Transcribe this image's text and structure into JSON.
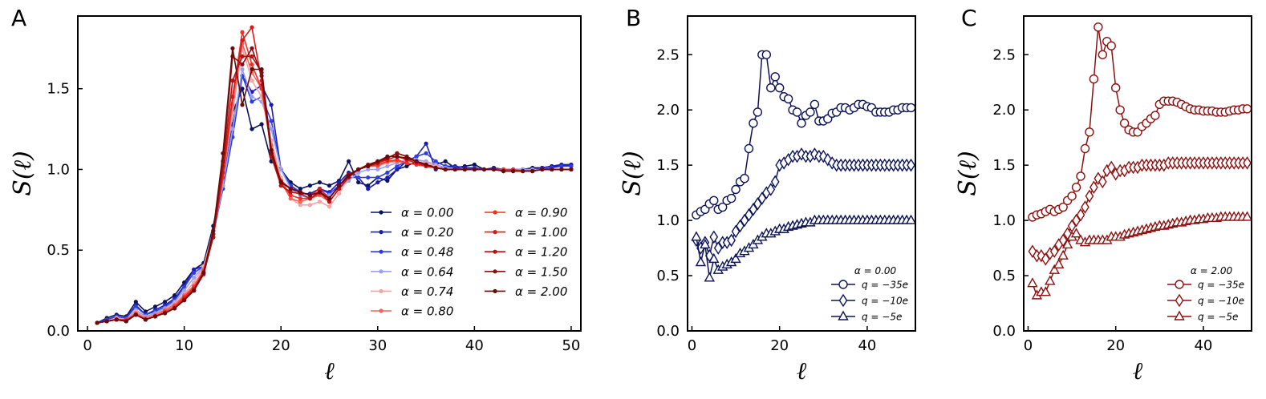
{
  "panel_letters": [
    "A",
    "B",
    "C"
  ],
  "chart_data": [
    {
      "type": "line",
      "panel": "A",
      "xlabel": "ℓ",
      "ylabel": "S(ℓ)",
      "xlim": [
        -1,
        51
      ],
      "ylim": [
        0,
        1.95
      ],
      "xticks": [
        0,
        10,
        20,
        30,
        40,
        50
      ],
      "xtick_labels": [
        "0",
        "10",
        "20",
        "30",
        "40",
        "50"
      ],
      "yticks": [
        0,
        0.5,
        1.0,
        1.5
      ],
      "ytick_labels": [
        "0.0",
        "0.5",
        "1.0",
        "1.5"
      ],
      "legend_position": "bottom-right",
      "legend_columns": 2,
      "series": [
        {
          "name": "α = 0.00",
          "color": "#0d1358",
          "values": [
            0.05,
            0.08,
            0.1,
            0.09,
            0.18,
            0.12,
            0.15,
            0.18,
            0.22,
            0.3,
            0.38,
            0.42,
            0.65,
            0.95,
            1.35,
            1.5,
            1.25,
            1.28,
            1.05,
            1.0,
            0.92,
            0.88,
            0.9,
            0.92,
            0.9,
            0.93,
            1.05,
            0.92,
            0.9,
            0.95,
            0.93,
            1.0,
            1.02,
            1.05,
            1.02,
            1.03,
            1.05,
            1.01,
            1.02,
            1.03,
            1.0,
            1.01,
            0.99,
            1.0,
            1.0,
            1.01,
            1.01,
            1.02,
            1.02,
            1.03
          ]
        },
        {
          "name": "α = 0.20",
          "color": "#1c1cb5",
          "values": [
            0.05,
            0.07,
            0.09,
            0.08,
            0.16,
            0.1,
            0.13,
            0.16,
            0.2,
            0.28,
            0.38,
            0.4,
            0.62,
            0.9,
            1.28,
            1.58,
            1.48,
            1.52,
            1.4,
            1.0,
            0.9,
            0.85,
            0.85,
            0.88,
            0.86,
            0.92,
            0.98,
            0.95,
            0.88,
            0.92,
            0.95,
            1.0,
            1.05,
            1.08,
            1.16,
            1.0,
            1.02,
            1.02,
            1.01,
            1.01,
            1.0,
            1.01,
            1.0,
            1.0,
            1.0,
            1.0,
            1.01,
            1.02,
            1.03,
            1.03
          ]
        },
        {
          "name": "α = 0.48",
          "color": "#2f3de0",
          "values": [
            0.05,
            0.07,
            0.09,
            0.08,
            0.15,
            0.1,
            0.12,
            0.15,
            0.19,
            0.27,
            0.36,
            0.4,
            0.6,
            0.88,
            1.2,
            1.58,
            1.42,
            1.45,
            1.3,
            1.0,
            0.9,
            0.86,
            0.84,
            0.88,
            0.85,
            0.9,
            0.95,
            0.95,
            0.95,
            0.95,
            0.98,
            1.02,
            1.05,
            1.08,
            1.1,
            1.05,
            1.02,
            1.01,
            1.0,
            1.01,
            1.0,
            1.0,
            1.0,
            1.0,
            1.0,
            1.0,
            1.0,
            1.01,
            1.02,
            1.02
          ]
        },
        {
          "name": "α = 0.64",
          "color": "#9aa0f0",
          "values": [
            0.05,
            0.06,
            0.08,
            0.07,
            0.13,
            0.09,
            0.11,
            0.14,
            0.18,
            0.25,
            0.33,
            0.4,
            0.6,
            0.9,
            1.25,
            1.62,
            1.45,
            1.42,
            1.25,
            1.0,
            0.88,
            0.84,
            0.82,
            0.86,
            0.84,
            0.88,
            0.93,
            0.98,
            1.0,
            1.0,
            1.02,
            1.04,
            1.06,
            1.06,
            1.05,
            1.03,
            1.01,
            1.0,
            1.0,
            1.0,
            1.0,
            1.0,
            1.0,
            1.0,
            1.0,
            1.0,
            1.0,
            1.0,
            1.0,
            1.0
          ]
        },
        {
          "name": "α = 0.74",
          "color": "#f5a3a3",
          "values": [
            0.05,
            0.06,
            0.08,
            0.07,
            0.12,
            0.08,
            0.1,
            0.13,
            0.17,
            0.23,
            0.3,
            0.4,
            0.62,
            0.95,
            1.35,
            1.75,
            1.55,
            1.45,
            1.18,
            0.95,
            0.82,
            0.78,
            0.78,
            0.8,
            0.77,
            0.85,
            0.95,
            1.0,
            1.02,
            1.02,
            1.04,
            1.05,
            1.05,
            1.05,
            1.04,
            1.02,
            1.0,
            1.0,
            1.0,
            1.0,
            1.0,
            1.0,
            1.0,
            0.99,
            0.99,
            0.99,
            1.0,
            1.0,
            1.0,
            1.0
          ]
        },
        {
          "name": "α = 0.80",
          "color": "#f2645a",
          "values": [
            0.05,
            0.06,
            0.07,
            0.07,
            0.11,
            0.08,
            0.1,
            0.13,
            0.16,
            0.22,
            0.28,
            0.38,
            0.6,
            0.95,
            1.4,
            1.78,
            1.6,
            1.5,
            1.15,
            0.92,
            0.82,
            0.8,
            0.82,
            0.84,
            0.8,
            0.88,
            0.95,
            1.0,
            1.02,
            1.02,
            1.05,
            1.05,
            1.04,
            1.03,
            1.02,
            1.01,
            1.0,
            1.0,
            1.0,
            1.0,
            1.0,
            1.0,
            1.0,
            1.0,
            0.99,
            0.99,
            1.0,
            1.0,
            1.0,
            1.0
          ]
        },
        {
          "name": "α = 0.90",
          "color": "#f23025",
          "values": [
            0.05,
            0.06,
            0.07,
            0.07,
            0.1,
            0.07,
            0.09,
            0.12,
            0.15,
            0.21,
            0.27,
            0.37,
            0.58,
            0.95,
            1.45,
            1.85,
            1.65,
            1.5,
            1.12,
            0.92,
            0.84,
            0.82,
            0.82,
            0.85,
            0.82,
            0.9,
            0.96,
            1.0,
            1.02,
            1.03,
            1.05,
            1.06,
            1.04,
            1.03,
            1.02,
            1.01,
            1.0,
            1.0,
            1.0,
            1.0,
            1.0,
            1.0,
            1.0,
            1.0,
            0.99,
            0.99,
            1.0,
            1.0,
            1.0,
            1.0
          ]
        },
        {
          "name": "α = 1.00",
          "color": "#d81a1a",
          "values": [
            0.05,
            0.06,
            0.07,
            0.06,
            0.1,
            0.07,
            0.09,
            0.11,
            0.14,
            0.2,
            0.26,
            0.36,
            0.58,
            0.98,
            1.45,
            1.8,
            1.88,
            1.55,
            1.1,
            0.93,
            0.88,
            0.86,
            0.84,
            0.88,
            0.82,
            0.9,
            0.96,
            1.0,
            1.02,
            1.04,
            1.06,
            1.08,
            1.06,
            1.04,
            1.02,
            1.01,
            1.0,
            1.0,
            1.0,
            1.0,
            1.0,
            1.0,
            0.99,
            0.99,
            0.99,
            0.99,
            1.0,
            1.0,
            1.0,
            1.0
          ]
        },
        {
          "name": "α = 1.20",
          "color": "#b51313",
          "values": [
            0.05,
            0.06,
            0.07,
            0.06,
            0.1,
            0.07,
            0.09,
            0.11,
            0.14,
            0.19,
            0.25,
            0.35,
            0.58,
            1.02,
            1.55,
            1.7,
            1.7,
            1.6,
            1.08,
            0.9,
            0.86,
            0.85,
            0.82,
            0.86,
            0.8,
            0.88,
            0.95,
            1.0,
            1.02,
            1.04,
            1.07,
            1.1,
            1.08,
            1.05,
            1.03,
            1.01,
            1.0,
            1.0,
            1.0,
            1.0,
            1.0,
            1.0,
            0.99,
            0.99,
            0.99,
            0.99,
            1.0,
            1.0,
            1.0,
            1.0
          ]
        },
        {
          "name": "α = 1.50",
          "color": "#8e0f0f",
          "values": [
            0.05,
            0.06,
            0.07,
            0.06,
            0.1,
            0.07,
            0.09,
            0.11,
            0.14,
            0.19,
            0.25,
            0.36,
            0.6,
            1.05,
            1.7,
            1.65,
            1.75,
            1.58,
            1.1,
            0.92,
            0.88,
            0.86,
            0.84,
            0.86,
            0.82,
            0.9,
            0.97,
            1.0,
            1.03,
            1.05,
            1.07,
            1.1,
            1.08,
            1.05,
            1.03,
            1.01,
            1.0,
            1.0,
            1.0,
            1.0,
            1.0,
            1.0,
            0.99,
            0.99,
            0.99,
            0.99,
            1.0,
            1.0,
            1.0,
            1.0
          ]
        },
        {
          "name": "α = 2.00",
          "color": "#6b0a0a",
          "values": [
            0.05,
            0.06,
            0.07,
            0.06,
            0.1,
            0.07,
            0.09,
            0.11,
            0.14,
            0.19,
            0.25,
            0.36,
            0.62,
            1.1,
            1.75,
            1.4,
            1.62,
            1.62,
            1.12,
            0.92,
            0.88,
            0.86,
            0.84,
            0.86,
            0.82,
            0.9,
            0.96,
            1.0,
            1.02,
            1.05,
            1.08,
            1.08,
            1.07,
            1.05,
            1.03,
            1.01,
            1.0,
            1.0,
            1.0,
            1.0,
            1.0,
            1.0,
            0.99,
            0.99,
            0.99,
            0.99,
            1.0,
            1.0,
            1.0,
            1.0
          ]
        }
      ]
    },
    {
      "type": "line",
      "panel": "B",
      "xlabel": "ℓ",
      "ylabel": "S(ℓ)",
      "xlim": [
        -1,
        51
      ],
      "ylim": [
        0,
        2.85
      ],
      "xticks": [
        0,
        20,
        40
      ],
      "xtick_labels": [
        "0",
        "20",
        "40"
      ],
      "yticks": [
        0,
        0.5,
        1.0,
        1.5,
        2.0,
        2.5
      ],
      "ytick_labels": [
        "0.0",
        "0.5",
        "1.0",
        "1.5",
        "2.0",
        "2.5"
      ],
      "legend_title": "α = 0.00",
      "legend_position": "bottom-right",
      "color": "#0d1358",
      "series": [
        {
          "name": "q = −35e",
          "marker": "circle",
          "values": [
            1.05,
            1.08,
            1.1,
            1.15,
            1.18,
            1.1,
            1.12,
            1.18,
            1.2,
            1.28,
            1.35,
            1.38,
            1.65,
            1.88,
            1.98,
            2.5,
            2.5,
            2.2,
            2.3,
            2.2,
            2.12,
            2.1,
            2.0,
            1.98,
            1.88,
            1.95,
            1.98,
            2.05,
            1.9,
            1.9,
            1.92,
            1.97,
            1.98,
            2.02,
            2.02,
            2.0,
            2.02,
            2.05,
            2.05,
            2.03,
            2.02,
            1.98,
            1.98,
            1.98,
            1.98,
            2.0,
            2.0,
            2.02,
            2.02,
            2.02
          ]
        },
        {
          "name": "q = −10e",
          "marker": "diamond",
          "values": [
            0.82,
            0.75,
            0.8,
            0.68,
            0.85,
            0.75,
            0.8,
            0.8,
            0.82,
            0.9,
            0.95,
            1.0,
            1.05,
            1.1,
            1.15,
            1.2,
            1.25,
            1.28,
            1.35,
            1.5,
            1.52,
            1.55,
            1.58,
            1.58,
            1.6,
            1.58,
            1.58,
            1.6,
            1.58,
            1.58,
            1.55,
            1.52,
            1.5,
            1.5,
            1.5,
            1.5,
            1.5,
            1.5,
            1.5,
            1.5,
            1.5,
            1.5,
            1.5,
            1.5,
            1.5,
            1.5,
            1.5,
            1.5,
            1.5,
            1.5
          ]
        },
        {
          "name": "q = −5e",
          "marker": "triangle",
          "values": [
            0.85,
            0.62,
            0.78,
            0.48,
            0.65,
            0.55,
            0.58,
            0.6,
            0.62,
            0.65,
            0.7,
            0.72,
            0.75,
            0.78,
            0.82,
            0.85,
            0.88,
            0.88,
            0.9,
            0.92,
            0.92,
            0.94,
            0.95,
            0.96,
            0.97,
            0.98,
            0.98,
            1.0,
            1.0,
            1.0,
            1.0,
            1.0,
            1.0,
            1.0,
            1.0,
            1.0,
            1.0,
            1.0,
            1.0,
            1.0,
            1.0,
            1.0,
            1.0,
            1.0,
            1.0,
            1.0,
            1.0,
            1.0,
            1.0,
            1.0
          ]
        }
      ]
    },
    {
      "type": "line",
      "panel": "C",
      "xlabel": "ℓ",
      "ylabel": "S(ℓ)",
      "xlim": [
        -1,
        51
      ],
      "ylim": [
        0,
        2.85
      ],
      "xticks": [
        0,
        20,
        40
      ],
      "xtick_labels": [
        "0",
        "20",
        "40"
      ],
      "yticks": [
        0,
        0.5,
        1.0,
        1.5,
        2.0,
        2.5
      ],
      "ytick_labels": [
        "0.0",
        "0.5",
        "1.0",
        "1.5",
        "2.0",
        "2.5"
      ],
      "legend_title": "α = 2.00",
      "legend_position": "bottom-right",
      "color": "#8e0f0f",
      "series": [
        {
          "name": "q = −35e",
          "marker": "circle",
          "values": [
            1.03,
            1.05,
            1.06,
            1.08,
            1.1,
            1.08,
            1.1,
            1.12,
            1.18,
            1.22,
            1.3,
            1.4,
            1.65,
            1.8,
            2.28,
            2.75,
            2.5,
            2.62,
            2.58,
            2.2,
            2.0,
            1.88,
            1.82,
            1.8,
            1.8,
            1.85,
            1.88,
            1.92,
            1.95,
            2.05,
            2.08,
            2.08,
            2.08,
            2.07,
            2.05,
            2.03,
            2.01,
            2.0,
            2.0,
            1.99,
            1.99,
            1.99,
            1.98,
            1.98,
            1.98,
            1.99,
            2.0,
            2.0,
            2.01,
            2.01
          ]
        },
        {
          "name": "q = −10e",
          "marker": "diamond",
          "values": [
            0.72,
            0.68,
            0.68,
            0.65,
            0.7,
            0.72,
            0.78,
            0.82,
            0.88,
            0.95,
            1.0,
            1.05,
            1.12,
            1.22,
            1.3,
            1.38,
            1.35,
            1.45,
            1.48,
            1.42,
            1.45,
            1.45,
            1.48,
            1.48,
            1.48,
            1.5,
            1.5,
            1.5,
            1.5,
            1.5,
            1.5,
            1.52,
            1.52,
            1.52,
            1.52,
            1.52,
            1.52,
            1.52,
            1.52,
            1.52,
            1.52,
            1.52,
            1.52,
            1.52,
            1.52,
            1.52,
            1.52,
            1.52,
            1.52,
            1.52
          ]
        },
        {
          "name": "q = −5e",
          "marker": "triangle",
          "values": [
            0.43,
            0.32,
            0.35,
            0.35,
            0.45,
            0.55,
            0.6,
            0.68,
            0.78,
            0.85,
            0.88,
            0.82,
            0.8,
            0.82,
            0.82,
            0.82,
            0.82,
            0.82,
            0.85,
            0.85,
            0.85,
            0.87,
            0.88,
            0.89,
            0.9,
            0.91,
            0.92,
            0.93,
            0.94,
            0.95,
            0.95,
            0.96,
            0.97,
            0.98,
            0.98,
            0.99,
            1.0,
            1.0,
            1.01,
            1.01,
            1.02,
            1.02,
            1.02,
            1.03,
            1.03,
            1.03,
            1.03,
            1.03,
            1.03,
            1.03
          ]
        }
      ]
    }
  ]
}
